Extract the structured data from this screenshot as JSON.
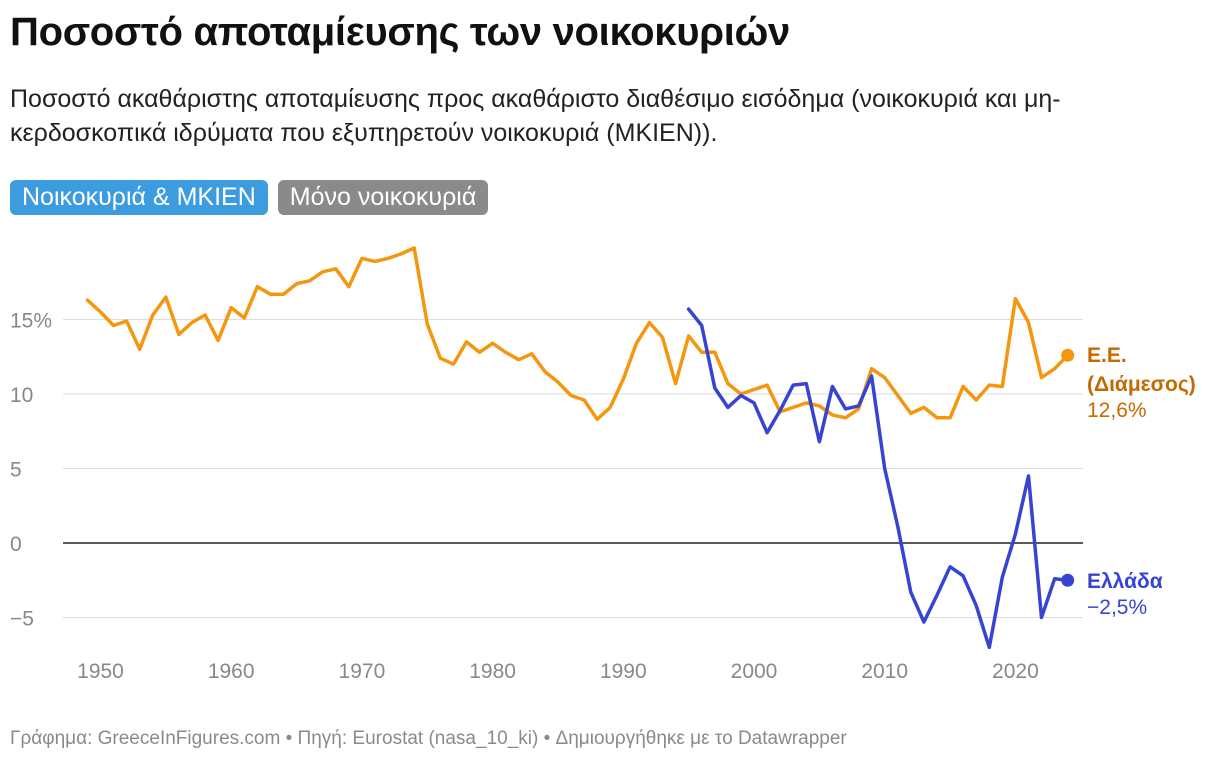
{
  "header": {
    "title": "Ποσοστό αποταμίευσης των νοικοκυριών",
    "subtitle": "Ποσοστό ακαθάριστης αποταμίευσης προς ακαθάριστο διαθέσιμο εισόδημα (νοικοκυριά και μη-κερδοσκοπικά ιδρύματα που εξυπηρετούν νοικοκυριά (ΜΚΙΕΝ))."
  },
  "tabs": [
    {
      "label": "Νοικοκυριά & ΜΚΙΕΝ",
      "active": true
    },
    {
      "label": "Μόνο νοικοκυριά",
      "active": false
    }
  ],
  "footer": {
    "text": "Γράφημα: GreeceInFigures.com • Πηγή: Eurostat (nasa_10_ki) • Δημιουργήθηκε με το Datawrapper"
  },
  "colors": {
    "eu": "#f5960f",
    "eu_label": "#c46a00",
    "greece": "#3744d1",
    "grid": "#dddddd",
    "axis_text": "#888888",
    "zero_line": "#222222"
  },
  "chart_data": {
    "type": "line",
    "title": "Ποσοστό αποταμίευσης των νοικοκυριών",
    "xlabel": "",
    "ylabel": "",
    "xlim": [
      1947,
      2027
    ],
    "ylim": [
      -8,
      20
    ],
    "x_ticks": [
      1950,
      1960,
      1970,
      1980,
      1990,
      2000,
      2010,
      2020
    ],
    "x_tick_labels": [
      "1950",
      "1960",
      "1970",
      "1980",
      "1990",
      "2000",
      "2010",
      "2020"
    ],
    "y_ticks": [
      15,
      10,
      5,
      0,
      -5
    ],
    "y_tick_labels": [
      "15%",
      "10",
      "5",
      "0",
      "−5"
    ],
    "series": [
      {
        "name": "Ε.Ε. (Διάμεσος)",
        "label_lines": [
          "Ε.Ε.",
          "(Διάμεσος)"
        ],
        "value_label": "12,6%",
        "color_key": "eu",
        "x": [
          1949,
          1950,
          1951,
          1952,
          1953,
          1954,
          1955,
          1956,
          1957,
          1958,
          1959,
          1960,
          1961,
          1962,
          1963,
          1964,
          1965,
          1966,
          1967,
          1968,
          1969,
          1970,
          1971,
          1972,
          1973,
          1974,
          1975,
          1976,
          1977,
          1978,
          1979,
          1980,
          1981,
          1982,
          1983,
          1984,
          1985,
          1986,
          1987,
          1988,
          1989,
          1990,
          1991,
          1992,
          1993,
          1994,
          1995,
          1996,
          1997,
          1998,
          1999,
          2000,
          2001,
          2002,
          2003,
          2004,
          2005,
          2006,
          2007,
          2008,
          2009,
          2010,
          2011,
          2012,
          2013,
          2014,
          2015,
          2016,
          2017,
          2018,
          2019,
          2020,
          2021,
          2022,
          2023,
          2024
        ],
        "values": [
          16.3,
          15.5,
          14.6,
          14.9,
          13.0,
          15.3,
          16.5,
          14.0,
          14.8,
          15.3,
          13.6,
          15.8,
          15.1,
          17.2,
          16.7,
          16.7,
          17.4,
          17.6,
          18.2,
          18.4,
          17.2,
          19.1,
          18.9,
          19.1,
          19.4,
          19.8,
          14.7,
          12.4,
          12.0,
          13.5,
          12.8,
          13.4,
          12.8,
          12.3,
          12.7,
          11.5,
          10.8,
          9.9,
          9.6,
          8.3,
          9.1,
          11.0,
          13.4,
          14.8,
          13.8,
          10.7,
          13.9,
          12.8,
          12.8,
          10.7,
          10.0,
          10.3,
          10.6,
          8.8,
          9.1,
          9.4,
          9.2,
          8.6,
          8.4,
          9.0,
          11.7,
          11.1,
          9.9,
          8.7,
          9.1,
          8.4,
          8.4,
          10.5,
          9.6,
          10.6,
          10.5,
          16.4,
          14.8,
          11.1,
          11.7,
          12.6
        ]
      },
      {
        "name": "Ελλάδα",
        "label_lines": [
          "Ελλάδα"
        ],
        "value_label": "−2,5%",
        "color_key": "greece",
        "x": [
          1995,
          1996,
          1997,
          1998,
          1999,
          2000,
          2001,
          2002,
          2003,
          2004,
          2005,
          2006,
          2007,
          2008,
          2009,
          2010,
          2011,
          2012,
          2013,
          2014,
          2015,
          2016,
          2017,
          2018,
          2019,
          2020,
          2021,
          2022,
          2023,
          2024
        ],
        "values": [
          15.7,
          14.6,
          10.4,
          9.1,
          9.9,
          9.4,
          7.4,
          8.9,
          10.6,
          10.7,
          6.8,
          10.5,
          9.0,
          9.2,
          11.2,
          5.0,
          1.1,
          -3.3,
          -5.3,
          -3.5,
          -1.6,
          -2.2,
          -4.2,
          -7.0,
          -2.3,
          0.6,
          4.5,
          -5.0,
          -2.4,
          -2.5
        ]
      }
    ]
  }
}
